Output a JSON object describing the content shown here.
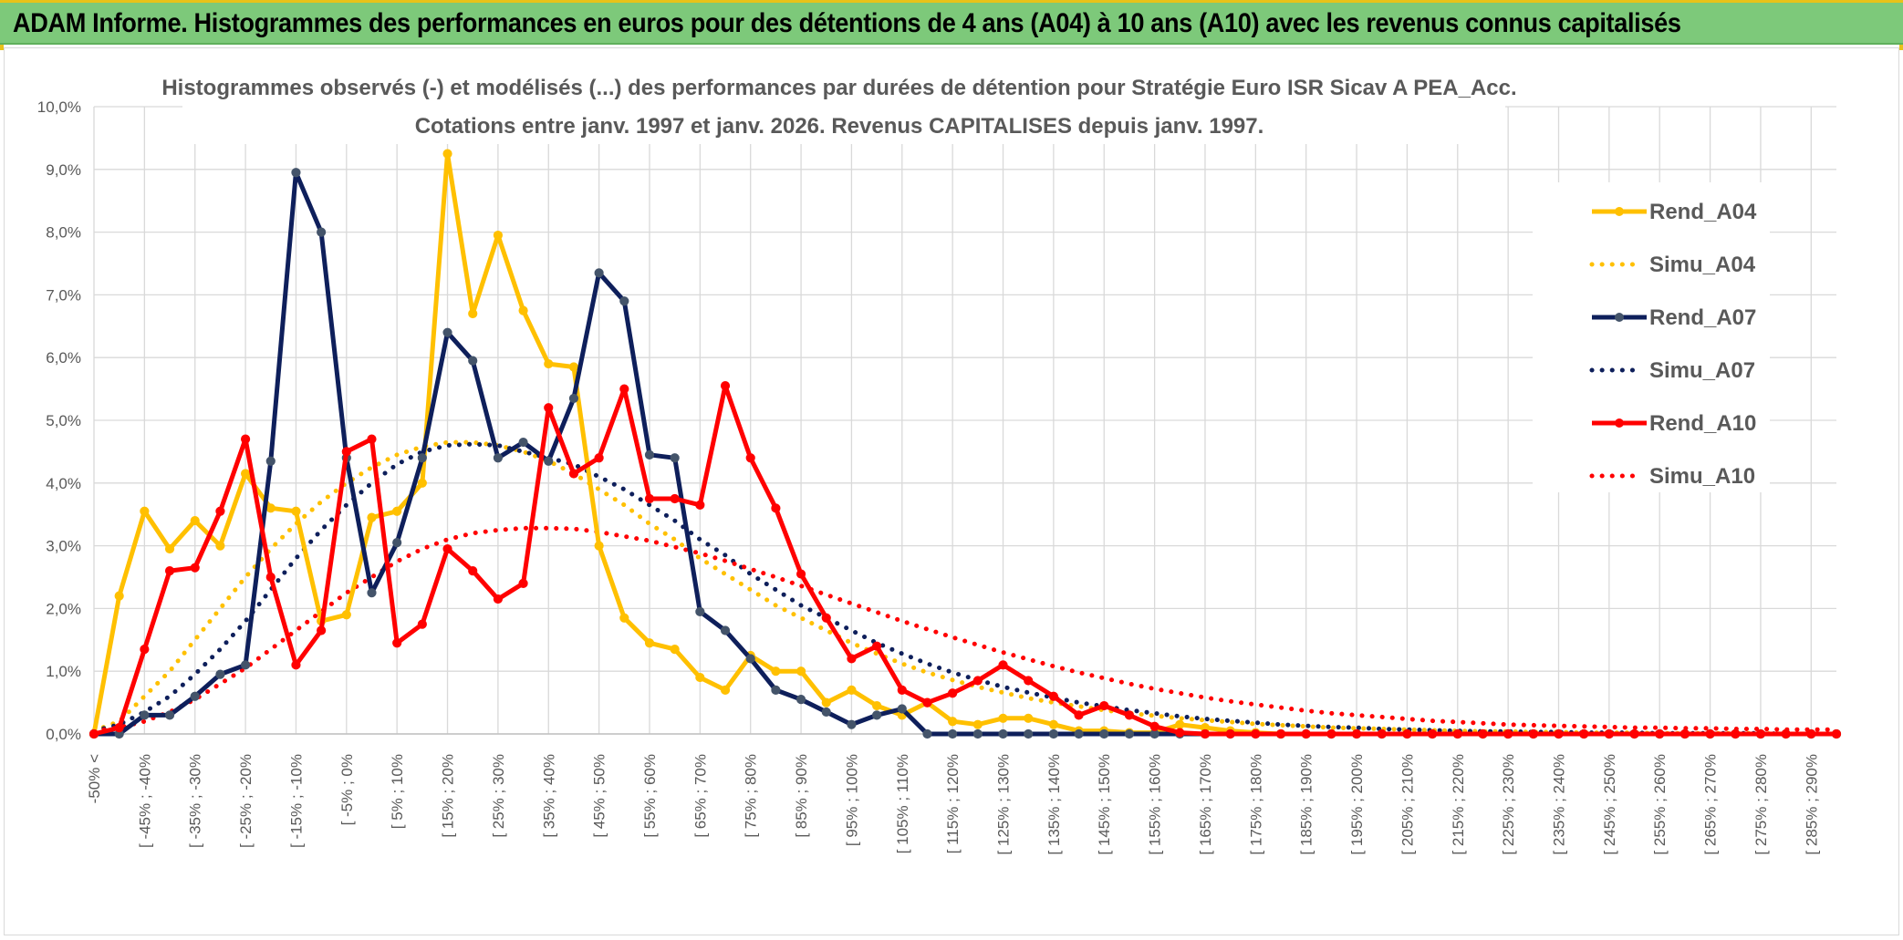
{
  "banner": {
    "title": "ADAM Informe. Histogrammes des performances en euros pour des détentions de 4 ans (A04) à 10 ans (A10) avec les revenus connus capitalisés"
  },
  "chart_data": {
    "type": "line",
    "title": "Histogrammes observés (-) et modélisés (...) des performances par durées de détention pour Stratégie Euro ISR Sicav A PEA_Acc.",
    "subtitle": "Cotations entre janv. 1997 et janv. 2026. Revenus CAPITALISES depuis janv. 1997.",
    "ylim": [
      0,
      10
    ],
    "yticks": [
      "0,0%",
      "1,0%",
      "2,0%",
      "3,0%",
      "4,0%",
      "5,0%",
      "6,0%",
      "7,0%",
      "8,0%",
      "9,0%",
      "10,0%"
    ],
    "grid": true,
    "legend_position": "right",
    "x_labels": [
      "-50% <",
      "[ -45% ; -40%",
      "[ -35% ; -30%",
      "[ -25% ; -20%",
      "[ -15% ; -10%",
      "[ -5% ; 0%",
      "[ 5% ; 10%",
      "[ 15% ; 20%",
      "[ 25% ; 30%",
      "[ 35% ; 40%",
      "[ 45% ; 50%",
      "[ 55% ; 60%",
      "[ 65% ; 70%",
      "[ 75% ; 80%",
      "[ 85% ; 90%",
      "[ 95% ; 100%",
      "[ 105% ; 110%",
      "[ 115% ; 120%",
      "[ 125% ; 130%",
      "[ 135% ; 140%",
      "[ 145% ; 150%",
      "[ 155% ; 160%",
      "[ 165% ; 170%",
      "[ 175% ; 180%",
      "[ 185% ; 190%",
      "[ 195% ; 200%",
      "[ 205% ; 210%",
      "[ 215% ; 220%",
      "[ 225% ; 230%",
      "[ 235% ; 240%",
      "[ 245% ; 250%",
      "[ 255% ; 260%",
      "[ 265% ; 270%",
      "[ 275% ; 280%",
      "[ 285% ; 290%"
    ],
    "series": [
      {
        "name": "Rend_A04",
        "style": "solid",
        "markers": true,
        "color": "#FFC000",
        "values": [
          0,
          2.2,
          3.55,
          2.95,
          3.4,
          3.0,
          4.15,
          3.6,
          3.55,
          1.8,
          1.9,
          3.45,
          3.55,
          4.0,
          9.25,
          6.7,
          7.95,
          6.75,
          5.9,
          5.85,
          3.0,
          1.85,
          1.45,
          1.35,
          0.9,
          0.7,
          1.25,
          1.0,
          1.0,
          0.5,
          0.7,
          0.45,
          0.3,
          0.5,
          0.2,
          0.15,
          0.25,
          0.25,
          0.15,
          0.05,
          0.05,
          0.02,
          0.02,
          0.15,
          0.1,
          0.05,
          0.02,
          0,
          0,
          0,
          0,
          0,
          0,
          0,
          0,
          0,
          0,
          0,
          0,
          0,
          0,
          0,
          0,
          0,
          0,
          0,
          0,
          0,
          0,
          0
        ]
      },
      {
        "name": "Simu_A04",
        "style": "dotted",
        "markers": false,
        "color": "#FFC000",
        "values": [
          0.05,
          0.2,
          0.6,
          1.0,
          1.5,
          2.0,
          2.5,
          2.95,
          3.35,
          3.7,
          4.0,
          4.25,
          4.45,
          4.58,
          4.65,
          4.65,
          4.6,
          4.5,
          4.35,
          4.15,
          3.9,
          3.65,
          3.35,
          3.1,
          2.8,
          2.55,
          2.3,
          2.05,
          1.85,
          1.65,
          1.45,
          1.28,
          1.12,
          0.98,
          0.86,
          0.75,
          0.66,
          0.57,
          0.5,
          0.44,
          0.38,
          0.33,
          0.29,
          0.25,
          0.22,
          0.19,
          0.16,
          0.14,
          0.12,
          0.1,
          0.09,
          0.08,
          0.07,
          0.06,
          0.05,
          0.04,
          0.04,
          0.03,
          0.03,
          0.02,
          0.02,
          0.02,
          0.01,
          0.01,
          0.01,
          0.01,
          0.01,
          0,
          0,
          0
        ]
      },
      {
        "name": "Rend_A07",
        "style": "solid",
        "markers": true,
        "color": "#0E1F5B",
        "values": [
          0,
          0,
          0.3,
          0.3,
          0.6,
          0.95,
          1.1,
          4.35,
          8.95,
          8.0,
          4.4,
          2.25,
          3.05,
          4.4,
          6.4,
          5.95,
          4.4,
          4.65,
          4.35,
          5.35,
          7.35,
          6.9,
          4.45,
          4.4,
          1.95,
          1.65,
          1.2,
          0.7,
          0.55,
          0.35,
          0.15,
          0.3,
          0.4,
          0,
          0,
          0,
          0,
          0,
          0,
          0,
          0,
          0,
          0,
          0,
          0,
          0,
          0,
          0,
          0,
          0,
          0,
          0,
          0,
          0,
          0,
          0,
          0,
          0,
          0,
          0,
          0,
          0,
          0,
          0,
          0,
          0,
          0,
          0,
          0,
          0
        ]
      },
      {
        "name": "Simu_A07",
        "style": "dotted",
        "markers": false,
        "color": "#0E1F5B",
        "values": [
          0.05,
          0.15,
          0.35,
          0.6,
          0.95,
          1.35,
          1.8,
          2.3,
          2.8,
          3.25,
          3.65,
          4.0,
          4.3,
          4.5,
          4.6,
          4.62,
          4.6,
          4.5,
          4.4,
          4.3,
          4.1,
          3.9,
          3.65,
          3.4,
          3.1,
          2.85,
          2.55,
          2.3,
          2.05,
          1.85,
          1.65,
          1.45,
          1.28,
          1.12,
          0.98,
          0.86,
          0.75,
          0.66,
          0.58,
          0.5,
          0.44,
          0.38,
          0.33,
          0.28,
          0.24,
          0.21,
          0.18,
          0.15,
          0.13,
          0.11,
          0.1,
          0.08,
          0.07,
          0.06,
          0.05,
          0.04,
          0.04,
          0.03,
          0.03,
          0.02,
          0.02,
          0.02,
          0.01,
          0.01,
          0.01,
          0.01,
          0.01,
          0,
          0,
          0
        ]
      },
      {
        "name": "Rend_A10",
        "style": "solid",
        "markers": true,
        "color": "#FF0000",
        "values": [
          0,
          0.1,
          1.35,
          2.6,
          2.65,
          3.55,
          4.7,
          2.5,
          1.1,
          1.65,
          4.5,
          4.7,
          1.45,
          1.75,
          2.95,
          2.6,
          2.15,
          2.4,
          5.2,
          4.15,
          4.4,
          5.5,
          3.75,
          3.75,
          3.65,
          5.55,
          4.4,
          3.6,
          2.55,
          1.85,
          1.2,
          1.4,
          0.7,
          0.5,
          0.65,
          0.85,
          1.1,
          0.85,
          0.6,
          0.3,
          0.45,
          0.3,
          0.12,
          0.02,
          0,
          0,
          0,
          0,
          0,
          0,
          0,
          0,
          0,
          0,
          0,
          0,
          0,
          0,
          0,
          0,
          0,
          0,
          0,
          0,
          0,
          0,
          0,
          0,
          0,
          0
        ]
      },
      {
        "name": "Simu_A10",
        "style": "dotted",
        "markers": false,
        "color": "#FF0000",
        "values": [
          0.05,
          0.1,
          0.2,
          0.35,
          0.55,
          0.8,
          1.05,
          1.35,
          1.65,
          1.95,
          2.25,
          2.5,
          2.75,
          2.95,
          3.1,
          3.2,
          3.25,
          3.28,
          3.28,
          3.27,
          3.22,
          3.15,
          3.08,
          2.98,
          2.88,
          2.76,
          2.63,
          2.5,
          2.36,
          2.22,
          2.08,
          1.94,
          1.8,
          1.67,
          1.54,
          1.42,
          1.3,
          1.19,
          1.08,
          0.98,
          0.89,
          0.8,
          0.72,
          0.65,
          0.58,
          0.52,
          0.47,
          0.42,
          0.37,
          0.33,
          0.3,
          0.27,
          0.24,
          0.21,
          0.19,
          0.17,
          0.15,
          0.14,
          0.13,
          0.12,
          0.11,
          0.1,
          0.1,
          0.09,
          0.09,
          0.08,
          0.08,
          0.07,
          0.07,
          0.07
        ]
      }
    ]
  }
}
